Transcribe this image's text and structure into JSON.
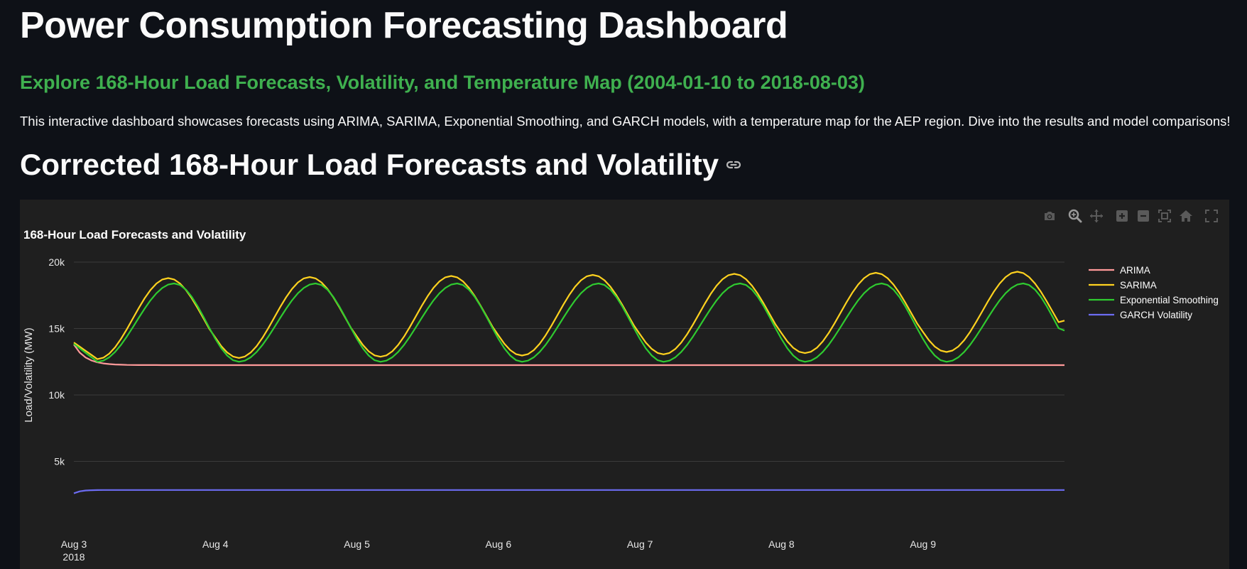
{
  "header": {
    "title": "Power Consumption Forecasting Dashboard",
    "subtitle": "Explore 168-Hour Load Forecasts, Volatility, and Temperature Map (2004-01-10 to 2018-08-03)",
    "intro": "This interactive dashboard showcases forecasts using ARIMA, SARIMA, Exponential Smoothing, and GARCH models, with a temperature map for the AEP region. Dive into the results and model comparisons!",
    "section_title": "Corrected 168-Hour Load Forecasts and Volatility"
  },
  "colors": {
    "background": "#0e1117",
    "subtitle": "#3fb04f",
    "card": "#1f1f1f",
    "grid": "#3b3b3b",
    "arima": "#ff9a9a",
    "sarima": "#ffd21f",
    "exp_smoothing": "#2fcb30",
    "garch": "#6c6cf2"
  },
  "toolbar": {
    "icons": [
      "camera-icon",
      "zoom-icon",
      "pan-icon",
      "zoom-in-icon",
      "zoom-out-icon",
      "autoscale-icon",
      "reset-axes-icon",
      "fullscreen-icon"
    ]
  },
  "chart_data": {
    "type": "line",
    "title": "168-Hour Load Forecasts and Volatility",
    "xlabel": "",
    "ylabel": "Load/Volatility (MW)",
    "x_range_hours": [
      0,
      168
    ],
    "ylim": [
      1500,
      21500
    ],
    "y_ticks": [
      5000,
      10000,
      15000,
      20000
    ],
    "y_tick_labels": [
      "5k",
      "10k",
      "15k",
      "20k"
    ],
    "x_ticks_hours": [
      0,
      24,
      48,
      72,
      96,
      120,
      144
    ],
    "x_tick_labels": [
      "Aug 3",
      "Aug 4",
      "Aug 5",
      "Aug 6",
      "Aug 7",
      "Aug 8",
      "Aug 9"
    ],
    "x_year_label": "2018",
    "legend_position": "top-right",
    "series": [
      {
        "name": "ARIMA",
        "model": "decay",
        "start": 13800,
        "level": 12250,
        "decay_rate": 0.5
      },
      {
        "name": "SARIMA",
        "model": "daily_cycle",
        "min": 12700,
        "max": 18800,
        "max_growth_per_day": 80,
        "min_growth_per_day": 90,
        "peak_hour": 16,
        "trough_hour": 4,
        "start": 13950,
        "end": 15600
      },
      {
        "name": "Exponential Smoothing",
        "model": "daily_cycle",
        "min": 12500,
        "max": 18400,
        "max_growth_per_day": 0,
        "min_growth_per_day": 0,
        "peak_hour": 17,
        "trough_hour": 4,
        "start": 13850,
        "end": 14850
      },
      {
        "name": "GARCH Volatility",
        "model": "flat",
        "start": 2600,
        "level": 2850
      }
    ]
  }
}
